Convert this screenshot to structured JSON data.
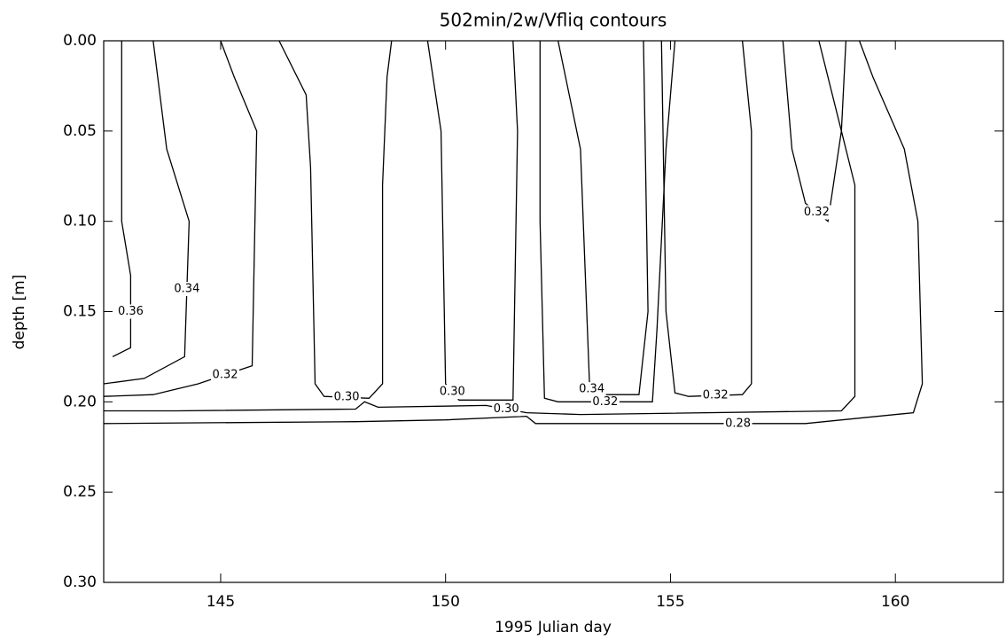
{
  "chart_data": {
    "type": "contour",
    "title": "502min/2w/Vfliq contours",
    "xlabel": "1995 Julian day",
    "ylabel": "depth [m]",
    "xlim": [
      142.4,
      162.4
    ],
    "xticks": [
      145,
      150,
      155,
      160
    ],
    "ylim": [
      0,
      0.3
    ],
    "y_inverted": true,
    "yticks": [
      {
        "value": 0,
        "label": "0.00"
      },
      0.05,
      {
        "value": 0.1,
        "label": "0.10"
      },
      0.15,
      {
        "value": 0.2,
        "label": "0.20"
      },
      0.25,
      {
        "value": 0.3,
        "label": "0.30"
      }
    ],
    "color": "#000000",
    "contours": [
      {
        "level": 0.28,
        "x": [
          142.4,
          148,
          150,
          151.8,
          152,
          155,
          158,
          160.4,
          160.6,
          160.5,
          160.2,
          159.5,
          159.2
        ],
        "y": [
          0.212,
          0.211,
          0.21,
          0.208,
          0.212,
          0.212,
          0.212,
          0.206,
          0.19,
          0.1,
          0.06,
          0.02,
          0
        ]
      },
      {
        "level": {
          "value": 0.3,
          "label": "0.30"
        },
        "x": [
          142.4,
          144,
          148,
          148.2,
          148.5,
          150.9,
          151.8,
          153,
          158.8,
          159.1,
          159.1,
          158.8,
          158.3
        ],
        "y": [
          0.205,
          0.205,
          0.204,
          0.2,
          0.203,
          0.202,
          0.206,
          0.207,
          0.205,
          0.197,
          0.08,
          0.05,
          0
        ]
      },
      {
        "level": {
          "value": 0.3,
          "label": "0.30"
        },
        "x": [
          146.3,
          146.9,
          147,
          147.1,
          147.3,
          148.3,
          148.6,
          148.6,
          148.7,
          148.8
        ],
        "y": [
          0,
          0.03,
          0.07,
          0.19,
          0.197,
          0.198,
          0.19,
          0.08,
          0.02,
          0
        ]
      },
      {
        "level": {
          "value": 0.3,
          "label": "0.30"
        },
        "x": [
          149.6,
          149.9,
          150,
          150.3,
          151.5,
          151.6,
          151.5
        ],
        "y": [
          0,
          0.05,
          0.19,
          0.199,
          0.199,
          0.05,
          0
        ]
      },
      {
        "level": 0.32,
        "x": [
          142.4,
          143.5,
          144.5,
          145.7,
          145.8,
          145.3,
          145
        ],
        "y": [
          0.197,
          0.196,
          0.19,
          0.18,
          0.05,
          0.02,
          0
        ]
      },
      {
        "level": 0.34,
        "x": [
          142.4,
          143.3,
          144.2,
          144.3,
          143.8,
          143.5
        ],
        "y": [
          0.19,
          0.187,
          0.175,
          0.1,
          0.06,
          0
        ]
      },
      {
        "level": 0.36,
        "x": [
          142.6,
          143,
          143,
          142.8,
          142.8
        ],
        "y": [
          0.175,
          0.17,
          0.13,
          0.1,
          0
        ]
      },
      {
        "level": 0.32,
        "x": [
          152.1,
          152.1,
          152.2,
          152.5,
          154.6,
          154.7,
          154.8,
          154.9,
          155.1
        ],
        "y": [
          0,
          0.1,
          0.198,
          0.2,
          0.2,
          0.16,
          0.11,
          0.06,
          0
        ]
      },
      {
        "level": 0.34,
        "x": [
          152.5,
          153,
          153.2,
          153.3,
          154.3,
          154.5,
          154.4
        ],
        "y": [
          0,
          0.06,
          0.19,
          0.196,
          0.196,
          0.15,
          0
        ]
      },
      {
        "level": 0.32,
        "x": [
          154.8,
          154.9,
          155.1,
          155.4,
          156.6,
          156.8,
          156.8,
          156.6
        ],
        "y": [
          0,
          0.15,
          0.195,
          0.197,
          0.196,
          0.19,
          0.05,
          0
        ]
      },
      {
        "level": 0.32,
        "x": [
          157.5,
          157.7,
          158,
          158.5,
          158.8,
          158.9
        ],
        "y": [
          0,
          0.06,
          0.09,
          0.1,
          0.05,
          0
        ]
      }
    ]
  }
}
